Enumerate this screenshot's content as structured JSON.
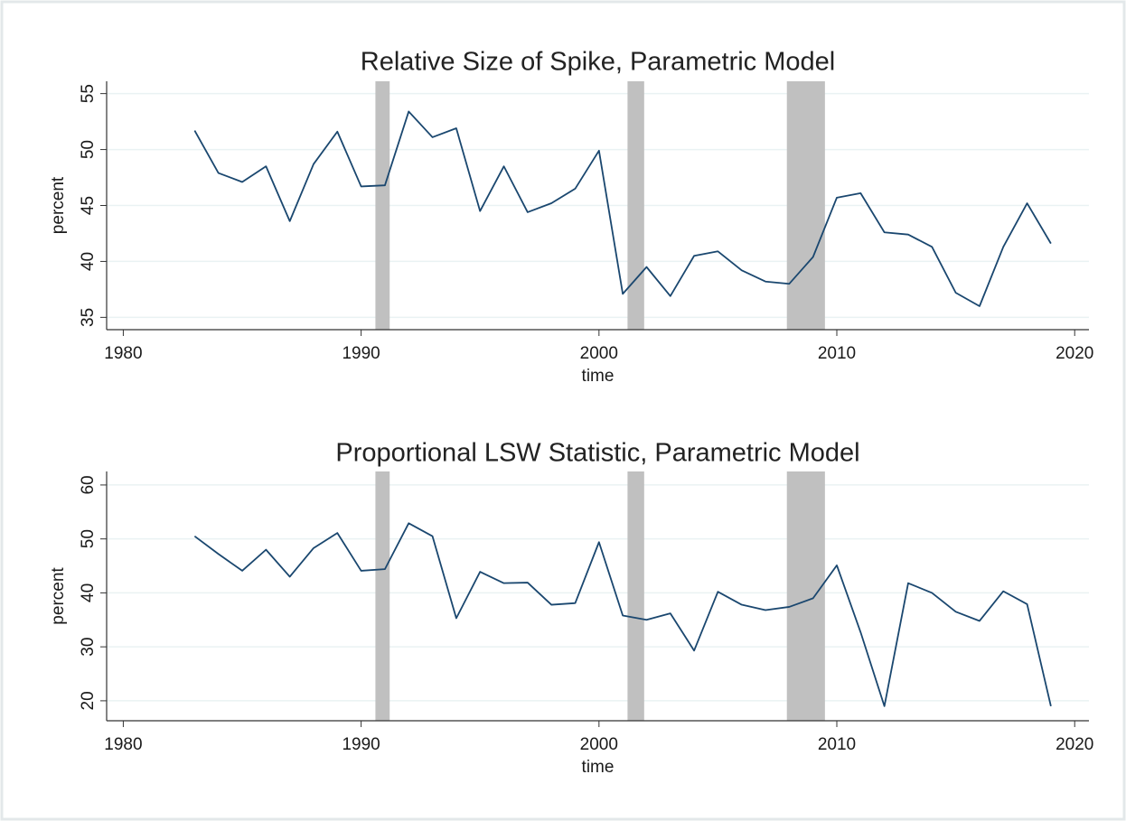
{
  "chart_data": [
    {
      "type": "line",
      "title": "Relative Size of Spike, Parametric Model",
      "xlabel": "time",
      "ylabel": "percent",
      "x": [
        1983,
        1984,
        1985,
        1986,
        1987,
        1988,
        1989,
        1990,
        1991,
        1992,
        1993,
        1994,
        1995,
        1996,
        1997,
        1998,
        1999,
        2000,
        2001,
        2002,
        2003,
        2004,
        2005,
        2006,
        2007,
        2008,
        2009,
        2010,
        2011,
        2012,
        2013,
        2014,
        2015,
        2016,
        2017,
        2018,
        2019
      ],
      "values": [
        51.7,
        47.9,
        47.1,
        48.5,
        43.6,
        48.7,
        51.6,
        46.7,
        46.8,
        53.4,
        51.1,
        51.9,
        44.5,
        48.5,
        44.4,
        45.2,
        46.5,
        49.9,
        37.1,
        39.5,
        36.9,
        40.5,
        40.9,
        39.2,
        38.2,
        38.0,
        40.4,
        45.7,
        46.1,
        42.6,
        42.4,
        41.3,
        37.2,
        36.0,
        41.3,
        45.2,
        41.6
      ],
      "color": "#1a476f",
      "shaded_periods": [
        [
          1990.6,
          1991.2
        ],
        [
          2001.2,
          2001.9
        ],
        [
          2007.9,
          2009.5
        ]
      ],
      "shade_color": "#c0c0c0",
      "xlim": [
        1979.3,
        2020.6
      ],
      "xticks": [
        1980,
        1990,
        2000,
        2010,
        2020
      ],
      "ylim": [
        33.9,
        56.1
      ],
      "yticks": [
        35,
        40,
        45,
        50,
        55
      ],
      "grid": true
    },
    {
      "type": "line",
      "title": "Proportional LSW Statistic, Parametric Model",
      "xlabel": "time",
      "ylabel": "percent",
      "x": [
        1983,
        1984,
        1985,
        1986,
        1987,
        1988,
        1989,
        1990,
        1991,
        1992,
        1993,
        1994,
        1995,
        1996,
        1997,
        1998,
        1999,
        2000,
        2001,
        2002,
        2003,
        2004,
        2005,
        2006,
        2007,
        2008,
        2009,
        2010,
        2011,
        2012,
        2013,
        2014,
        2015,
        2016,
        2017,
        2018,
        2019
      ],
      "values": [
        50.5,
        47.2,
        44.1,
        48.0,
        43.0,
        48.3,
        51.1,
        44.1,
        44.4,
        52.9,
        50.5,
        35.3,
        43.9,
        41.8,
        41.9,
        37.8,
        38.1,
        49.4,
        35.8,
        35.0,
        36.2,
        29.3,
        40.2,
        37.8,
        36.8,
        37.4,
        39.0,
        45.1,
        32.7,
        19.0,
        41.8,
        40.0,
        36.5,
        34.8,
        40.3,
        37.9,
        19.0
      ],
      "color": "#1a476f",
      "shaded_periods": [
        [
          1990.6,
          1991.2
        ],
        [
          2001.2,
          2001.9
        ],
        [
          2007.9,
          2009.5
        ]
      ],
      "shade_color": "#c0c0c0",
      "xlim": [
        1979.3,
        2020.6
      ],
      "xticks": [
        1980,
        1990,
        2000,
        2010,
        2020
      ],
      "ylim": [
        16.3,
        62.5
      ],
      "yticks": [
        20,
        30,
        40,
        50,
        60
      ],
      "grid": true
    }
  ]
}
